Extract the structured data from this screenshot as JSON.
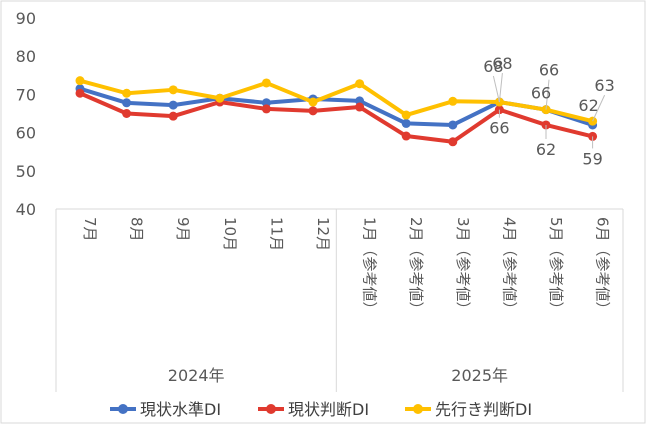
{
  "chart_data": {
    "type": "line",
    "categories": [
      "7月",
      "8月",
      "9月",
      "10月",
      "11月",
      "12月",
      "1月（参考値）",
      "2月（参考値）",
      "3月（参考値）",
      "4月（参考値）",
      "5月（参考値）",
      "6月（参考値）"
    ],
    "groups": [
      {
        "label": "2024年",
        "count": 6
      },
      {
        "label": "2025年",
        "count": 6
      }
    ],
    "series": [
      {
        "name": "現状水準DI",
        "color": "#4472c4",
        "values": [
          71.5,
          67.8,
          67.2,
          69,
          67.8,
          68.8,
          68.3,
          62.4,
          62,
          68,
          66,
          62
        ]
      },
      {
        "name": "現状判断DI",
        "color": "#e03a2f",
        "values": [
          70.3,
          65,
          64.3,
          68,
          66.2,
          65.7,
          66.7,
          59.1,
          57.6,
          66,
          62,
          59
        ]
      },
      {
        "name": "先行き判断DI",
        "color": "#ffc000",
        "values": [
          73.6,
          70.3,
          71.2,
          69,
          73,
          68,
          72.8,
          64.6,
          68.2,
          68,
          66,
          63
        ]
      }
    ],
    "data_labels": [
      {
        "series": 0,
        "index": 9,
        "text": "68"
      },
      {
        "series": 0,
        "index": 10,
        "text": "66"
      },
      {
        "series": 0,
        "index": 11,
        "text": "62"
      },
      {
        "series": 1,
        "index": 9,
        "text": "66"
      },
      {
        "series": 1,
        "index": 10,
        "text": "62"
      },
      {
        "series": 1,
        "index": 11,
        "text": "59"
      },
      {
        "series": 2,
        "index": 9,
        "text": "68"
      },
      {
        "series": 2,
        "index": 10,
        "text": "66"
      },
      {
        "series": 2,
        "index": 11,
        "text": "63"
      }
    ],
    "yticks": [
      "90",
      "80",
      "70",
      "60",
      "50",
      "40"
    ],
    "ylim": [
      40,
      90
    ],
    "grid": false,
    "legend": "bottom"
  }
}
